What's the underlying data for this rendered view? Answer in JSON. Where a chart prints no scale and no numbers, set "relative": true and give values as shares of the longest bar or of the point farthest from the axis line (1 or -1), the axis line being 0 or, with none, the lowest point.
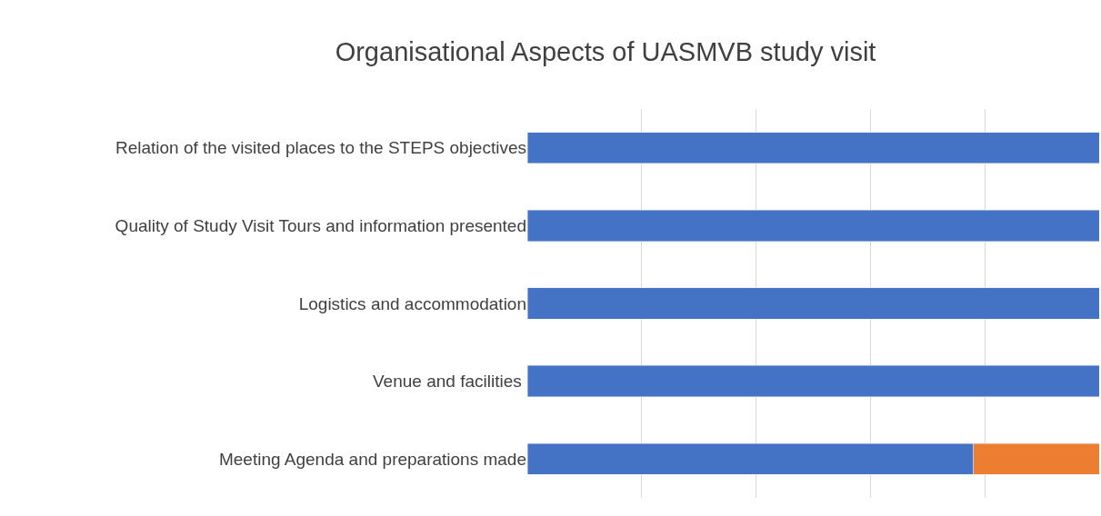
{
  "chart_data": {
    "type": "bar",
    "title": "Organisational Aspects of UASMVB study visit",
    "orientation": "horizontal",
    "stacked": true,
    "relative": true,
    "grid": "x",
    "categories": [
      "Relation of the visited places to the STEPS objectives",
      "Quality of Study Visit Tours and information presented",
      "Logistics and accommodation",
      "Venue and facilities ",
      "Meeting Agenda and preparations made"
    ],
    "series": [
      {
        "color": "#4472c4",
        "values": [
          1,
          1,
          1,
          1,
          0.78
        ]
      },
      {
        "color": "#ed7d31",
        "values": [
          null,
          null,
          null,
          null,
          0.22
        ]
      }
    ]
  }
}
